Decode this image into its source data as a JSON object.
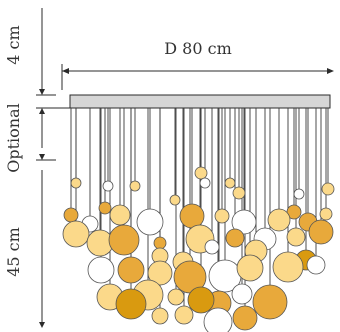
{
  "dimensions": {
    "top_height_label": "4 cm",
    "optional_label": "Optional",
    "drop_height_label": "45 cm",
    "diameter_label": "D 80 cm"
  },
  "colors": {
    "line": "#2b2b2b",
    "canopy": "#d6d6d6",
    "white_ball": "#ffffff",
    "light_yellow_ball": "#fbd98a",
    "amber_ball": "#e8a93b",
    "deep_amber_ball": "#d99a10",
    "ball_outline": "#555555"
  }
}
